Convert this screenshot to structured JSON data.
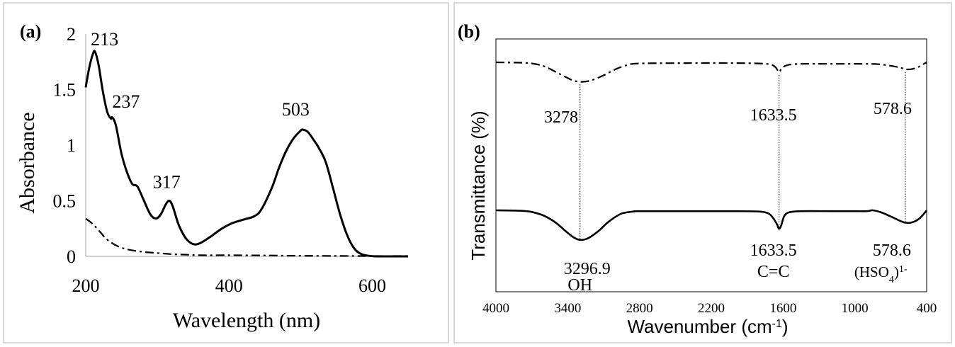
{
  "chart_data": [
    {
      "type": "line",
      "panel_label": "(a)",
      "title": "",
      "xlabel": "Wavelength (nm)",
      "ylabel": "Absorbance",
      "xlim": [
        200,
        650
      ],
      "ylim": [
        0,
        2
      ],
      "xticks": [
        "200",
        "400",
        "600"
      ],
      "yticks": [
        "0",
        "0.5",
        "1",
        "1.5",
        "2"
      ],
      "grid": false,
      "series": [
        {
          "name": "solid",
          "style": "solid",
          "x": [
            200,
            205,
            210,
            213,
            218,
            224,
            230,
            235,
            237,
            242,
            250,
            258,
            265,
            272,
            280,
            290,
            298,
            305,
            312,
            317,
            322,
            330,
            340,
            350,
            360,
            375,
            390,
            405,
            420,
            435,
            445,
            460,
            470,
            480,
            490,
            500,
            503,
            510,
            518,
            525,
            535,
            545,
            555,
            565,
            575,
            585,
            595,
            605,
            615,
            630,
            650
          ],
          "y": [
            1.52,
            1.7,
            1.82,
            1.84,
            1.72,
            1.48,
            1.3,
            1.24,
            1.25,
            1.18,
            0.92,
            0.75,
            0.65,
            0.63,
            0.52,
            0.38,
            0.34,
            0.38,
            0.47,
            0.5,
            0.44,
            0.28,
            0.16,
            0.11,
            0.12,
            0.18,
            0.25,
            0.3,
            0.33,
            0.36,
            0.42,
            0.62,
            0.8,
            0.95,
            1.06,
            1.13,
            1.14,
            1.12,
            1.05,
            0.98,
            0.85,
            0.62,
            0.38,
            0.19,
            0.07,
            0.02,
            0.005,
            0,
            0,
            0,
            0
          ]
        },
        {
          "name": "dash-dot",
          "style": "dashdot",
          "x": [
            200,
            210,
            220,
            230,
            245,
            260,
            280,
            300,
            320,
            340,
            360,
            400,
            450,
            500,
            550,
            600,
            650
          ],
          "y": [
            0.34,
            0.29,
            0.22,
            0.15,
            0.09,
            0.06,
            0.04,
            0.03,
            0.02,
            0.015,
            0.01,
            0.01,
            0.008,
            0.005,
            0.004,
            0.003,
            0.003
          ]
        }
      ],
      "annotations": [
        {
          "text": "213",
          "x": 213,
          "y": 1.84
        },
        {
          "text": "237",
          "x": 237,
          "y": 1.25
        },
        {
          "text": "317",
          "x": 317,
          "y": 0.5
        },
        {
          "text": "503",
          "x": 503,
          "y": 1.14
        }
      ]
    },
    {
      "type": "line",
      "panel_label": "(b)",
      "title": "",
      "xlabel": "Wavenumber (cm",
      "xlabel_sup": "-1",
      "xlabel_end": ")",
      "ylabel": "Transmittance (%)",
      "xlim": [
        4000,
        400
      ],
      "xticks": [
        "4000",
        "3400",
        "2800",
        "2200",
        "1600",
        "1000",
        "400"
      ],
      "grid": false,
      "series": [
        {
          "name": "dash-dot (top)",
          "style": "dashdot",
          "x": [
            4000,
            3800,
            3700,
            3600,
            3500,
            3420,
            3350,
            3278,
            3200,
            3100,
            3000,
            2900,
            2800,
            2400,
            2000,
            1800,
            1700,
            1660,
            1633.5,
            1610,
            1560,
            1450,
            1200,
            900,
            800,
            700,
            620,
            578.6,
            530,
            480,
            440,
            400
          ],
          "y": [
            1.0,
            0.99,
            0.97,
            0.9,
            0.75,
            0.62,
            0.52,
            0.49,
            0.53,
            0.66,
            0.82,
            0.93,
            0.97,
            0.98,
            0.98,
            0.97,
            0.94,
            0.86,
            0.74,
            0.85,
            0.93,
            0.96,
            0.96,
            0.96,
            0.95,
            0.91,
            0.86,
            0.82,
            0.82,
            0.86,
            0.93,
            1.0
          ]
        },
        {
          "name": "solid (bottom)",
          "style": "solid",
          "x": [
            4000,
            3800,
            3700,
            3600,
            3500,
            3420,
            3350,
            3296.9,
            3230,
            3150,
            3050,
            2950,
            2850,
            2800,
            2400,
            2000,
            1800,
            1720,
            1680,
            1650,
            1633.5,
            1615,
            1590,
            1550,
            1450,
            1200,
            1000,
            900,
            850,
            780,
            700,
            620,
            578.6,
            530,
            480,
            440,
            400
          ],
          "y": [
            1.0,
            0.99,
            0.96,
            0.87,
            0.7,
            0.5,
            0.34,
            0.28,
            0.32,
            0.48,
            0.74,
            0.92,
            0.97,
            0.98,
            0.98,
            0.98,
            0.97,
            0.92,
            0.8,
            0.65,
            0.55,
            0.64,
            0.86,
            0.95,
            0.98,
            0.98,
            0.98,
            0.98,
            1.0,
            0.95,
            0.85,
            0.74,
            0.7,
            0.7,
            0.76,
            0.86,
            1.0
          ]
        }
      ],
      "annotations": [
        {
          "text": "3278",
          "series": "top",
          "x": 3278
        },
        {
          "text": "1633.5",
          "series": "top",
          "x": 1633.5
        },
        {
          "text": "578.6",
          "series": "top",
          "x": 578.6
        },
        {
          "text": "3296.9",
          "series": "bottom",
          "x": 3296.9
        },
        {
          "text": "OH",
          "series": "bottom",
          "x": 3296.9
        },
        {
          "text": "1633.5",
          "series": "bottom",
          "x": 1633.5
        },
        {
          "text": "C=C",
          "series": "bottom",
          "x": 1633.5
        },
        {
          "text": "578.6",
          "series": "bottom",
          "x": 578.6
        },
        {
          "text": "(HSO",
          "sub": "4",
          "close": ")",
          "sup": "1-",
          "series": "bottom",
          "x": 578.6
        }
      ],
      "guide_lines": [
        3296.9,
        1633.5,
        578.6
      ]
    }
  ]
}
